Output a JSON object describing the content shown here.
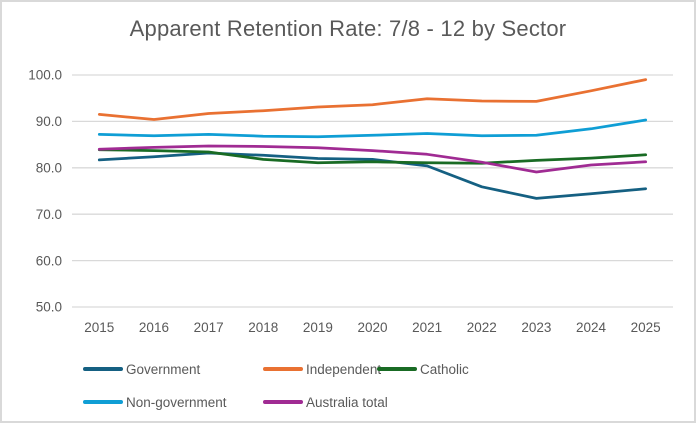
{
  "chart_data": {
    "type": "line",
    "title": "Apparent Retention Rate: 7/8 - 12 by Sector",
    "x_categories": [
      "2015",
      "2016",
      "2017",
      "2018",
      "2019",
      "2020",
      "2021",
      "2022",
      "2023",
      "2024",
      "2025"
    ],
    "xlabel": "",
    "ylabel": "",
    "ylim": [
      50.0,
      100.0
    ],
    "y_tick_step": 10,
    "y_tick_labels": [
      "50.0",
      "60.0",
      "70.0",
      "80.0",
      "90.0",
      "100.0"
    ],
    "grid": "horizontal",
    "legend_position": "bottom",
    "series": [
      {
        "name": "Government",
        "color": "#156082",
        "values": [
          81.7,
          82.4,
          83.2,
          82.7,
          82.0,
          81.8,
          80.4,
          75.9,
          73.4,
          74.4,
          75.5
        ]
      },
      {
        "name": "Independent",
        "color": "#E97132",
        "values": [
          91.5,
          90.4,
          91.7,
          92.3,
          93.1,
          93.6,
          94.9,
          94.4,
          94.3,
          96.6,
          99.0
        ]
      },
      {
        "name": "Catholic",
        "color": "#196B24",
        "values": [
          83.9,
          83.7,
          83.4,
          81.8,
          81.1,
          81.3,
          81.1,
          81.0,
          81.6,
          82.1,
          82.8
        ]
      },
      {
        "name": "Non-government",
        "color": "#0F9ED5",
        "values": [
          87.2,
          86.9,
          87.2,
          86.8,
          86.7,
          87.0,
          87.4,
          86.9,
          87.0,
          88.4,
          90.3
        ]
      },
      {
        "name": "Australia total",
        "color": "#A02B93",
        "values": [
          84.0,
          84.4,
          84.7,
          84.6,
          84.3,
          83.7,
          82.9,
          81.2,
          79.1,
          80.6,
          81.3
        ]
      }
    ],
    "legend_rows": [
      [
        "Government",
        "Independent",
        "Catholic"
      ],
      [
        "Non-government",
        "Australia total"
      ]
    ]
  },
  "colors": {
    "text": "#595959",
    "title_text": "#595959",
    "gridline": "#D9D9D9",
    "frame_border": "#D9D9D9",
    "background": "#FFFFFF"
  }
}
